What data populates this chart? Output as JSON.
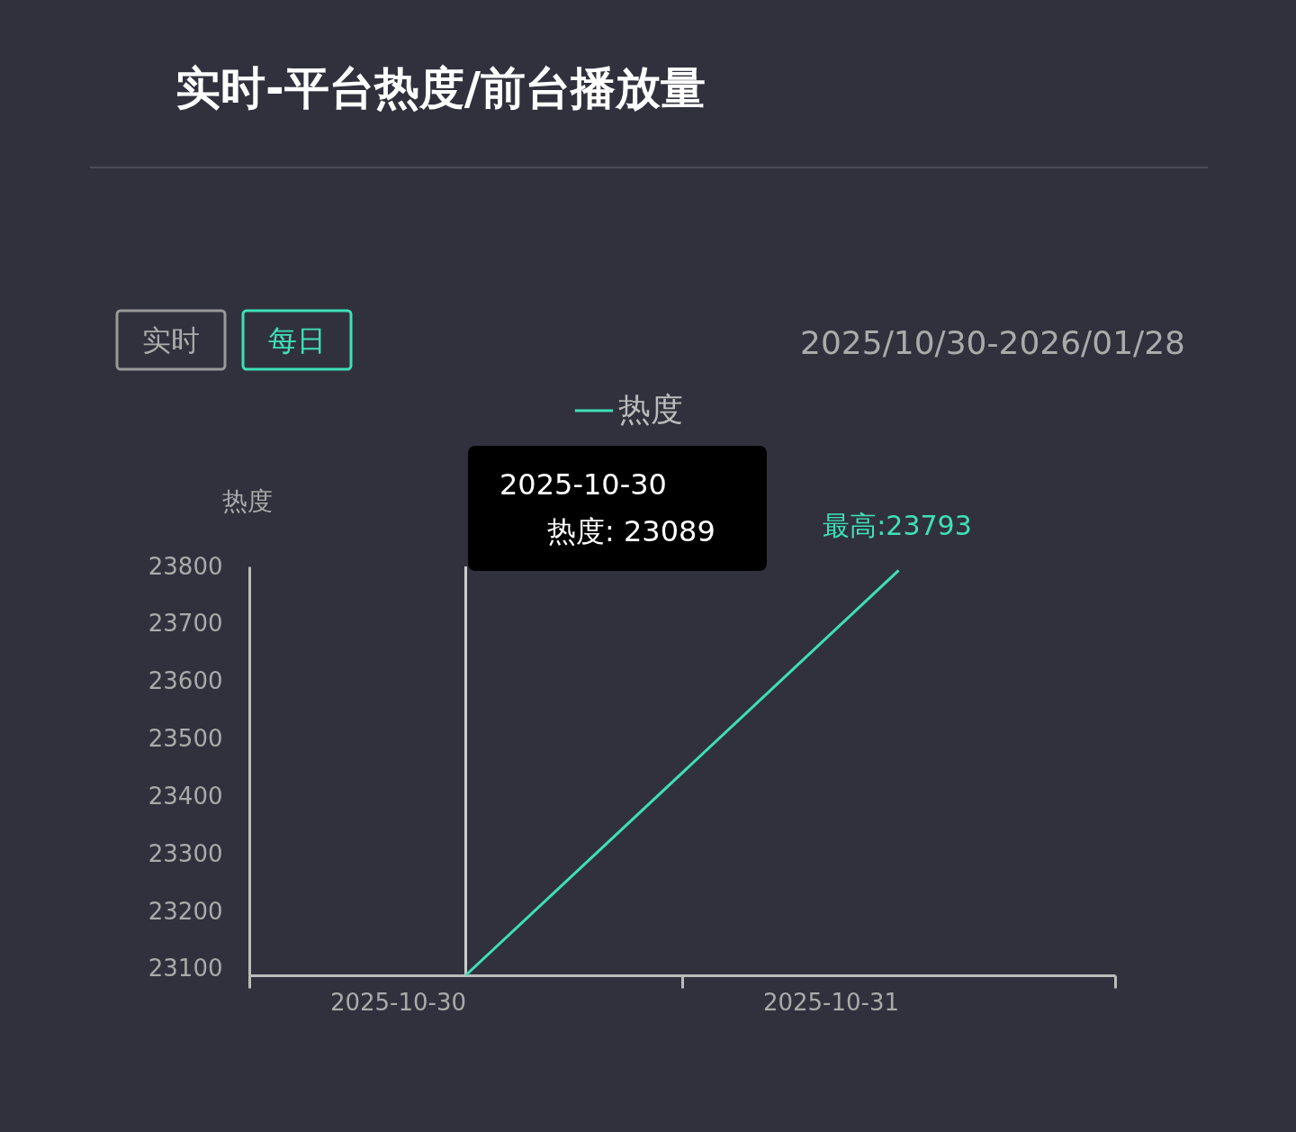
{
  "chart_data": {
    "type": "line",
    "title": "实时-平台热度/前台播放量",
    "ylabel": "热度",
    "categories": [
      "2025-10-30",
      "2025-10-31"
    ],
    "series": [
      {
        "name": "热度",
        "color": "#3fe0b8",
        "values": [
          23089,
          23793
        ]
      }
    ],
    "ylim": [
      23089,
      23800
    ],
    "yticks": [
      23100,
      23200,
      23300,
      23400,
      23500,
      23600,
      23700,
      23800
    ],
    "grid": false,
    "legend": "top",
    "line_style": "solid",
    "ref_lines": [
      {
        "axis": "x",
        "value": "2025-10-30",
        "color": "#cccccc"
      }
    ],
    "annotations": [
      "实时",
      "每日",
      "2025/10/30-2026/01/28",
      "2025-10-30",
      "热度: 23089",
      "最高:23793"
    ]
  }
}
